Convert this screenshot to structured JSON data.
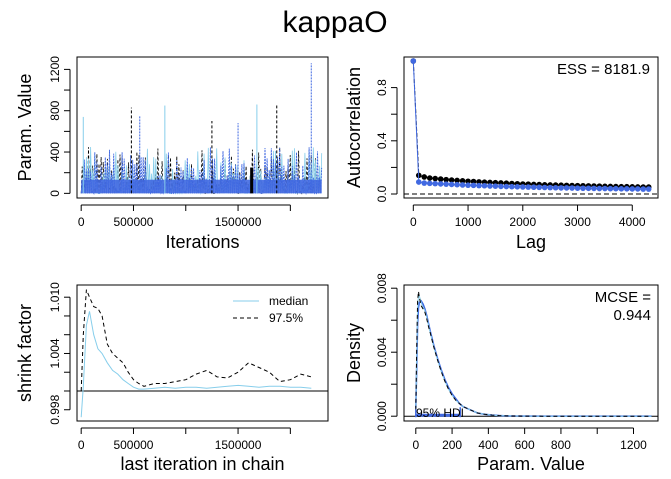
{
  "title": "kappaO",
  "colors": {
    "blue": "#4169E1",
    "lightblue": "#87CEEB",
    "black": "#000000"
  },
  "chart_data": [
    {
      "type": "line",
      "name": "trace",
      "xlabel": "Iterations",
      "ylabel": "Param. Value",
      "xlim": [
        0,
        2300000
      ],
      "ylim": [
        0,
        1300
      ],
      "xticks": [
        0,
        500000,
        1000000,
        1500000,
        2000000
      ],
      "xticklabels": [
        "0",
        "500000",
        "",
        "1500000",
        ""
      ],
      "yticks": [
        0,
        200,
        400,
        600,
        800,
        1000,
        1200
      ],
      "yticklabels": [
        "0",
        "",
        "400",
        "",
        "800",
        "",
        "1200"
      ],
      "typical_median": 60,
      "typical_max": 450,
      "spikes": [
        {
          "x": 20000,
          "y": 740
        },
        {
          "x": 480000,
          "y": 830
        },
        {
          "x": 560000,
          "y": 750
        },
        {
          "x": 800000,
          "y": 850
        },
        {
          "x": 1250000,
          "y": 700
        },
        {
          "x": 1500000,
          "y": 680
        },
        {
          "x": 1680000,
          "y": 860
        },
        {
          "x": 1870000,
          "y": 850
        },
        {
          "x": 2200000,
          "y": 1260
        }
      ]
    },
    {
      "type": "scatter",
      "name": "autocorrelation",
      "xlabel": "Lag",
      "ylabel": "Autocorrelation",
      "annotation": "ESS = 8181.9",
      "xlim": [
        0,
        4300
      ],
      "ylim": [
        0,
        1.0
      ],
      "xticks": [
        0,
        1000,
        2000,
        3000,
        4000
      ],
      "xticklabels": [
        "0",
        "1000",
        "2000",
        "3000",
        "4000"
      ],
      "yticks": [
        0.0,
        0.2,
        0.4,
        0.6,
        0.8
      ],
      "yticklabels": [
        "0.0",
        "",
        "0.4",
        "",
        "0.8"
      ],
      "lags": [
        0,
        100,
        200,
        300,
        400,
        500,
        600,
        700,
        800,
        900,
        1000,
        1100,
        1200,
        1300,
        1400,
        1500,
        1600,
        1700,
        1800,
        1900,
        2000,
        2100,
        2200,
        2300,
        2400,
        2500,
        2600,
        2700,
        2800,
        2900,
        3000,
        3100,
        3200,
        3300,
        3400,
        3500,
        3600,
        3700,
        3800,
        3900,
        4000,
        4100,
        4200,
        4300
      ],
      "series": [
        {
          "color": "black",
          "values": [
            1.0,
            0.14,
            0.128,
            0.12,
            0.116,
            0.112,
            0.108,
            0.105,
            0.102,
            0.099,
            0.096,
            0.094,
            0.091,
            0.089,
            0.087,
            0.085,
            0.083,
            0.081,
            0.079,
            0.077,
            0.075,
            0.074,
            0.072,
            0.071,
            0.069,
            0.068,
            0.067,
            0.066,
            0.065,
            0.064,
            0.063,
            0.062,
            0.061,
            0.06,
            0.059,
            0.058,
            0.057,
            0.056,
            0.055,
            0.055,
            0.054,
            0.053,
            0.052,
            0.052
          ]
        },
        {
          "color": "blue",
          "values": [
            1.0,
            0.09,
            0.082,
            0.08,
            0.078,
            0.076,
            0.074,
            0.072,
            0.07,
            0.068,
            0.066,
            0.065,
            0.063,
            0.062,
            0.06,
            0.059,
            0.057,
            0.056,
            0.055,
            0.054,
            0.053,
            0.052,
            0.051,
            0.05,
            0.049,
            0.048,
            0.047,
            0.046,
            0.046,
            0.045,
            0.044,
            0.043,
            0.043,
            0.042,
            0.041,
            0.041,
            0.04,
            0.04,
            0.039,
            0.039,
            0.038,
            0.038,
            0.037,
            0.037
          ]
        }
      ]
    },
    {
      "type": "line",
      "name": "shrink",
      "xlabel": "last iteration in chain",
      "ylabel": "shrink factor",
      "legend": [
        "median",
        "97.5%"
      ],
      "legend_position": "top-right",
      "xlim": [
        0,
        2300000
      ],
      "ylim": [
        0.997,
        1.011
      ],
      "xticks": [
        0,
        500000,
        1000000,
        1500000,
        2000000
      ],
      "xticklabels": [
        "0",
        "500000",
        "",
        "1500000",
        ""
      ],
      "yticks": [
        0.998,
        1.0,
        1.002,
        1.004,
        1.006,
        1.008,
        1.01
      ],
      "yticklabels": [
        "0.998",
        "",
        "",
        "1.004",
        "",
        "",
        "1.010"
      ],
      "reference": 1.0,
      "x": [
        0,
        20000,
        50000,
        80000,
        120000,
        160000,
        200000,
        250000,
        300000,
        350000,
        400000,
        450000,
        500000,
        550000,
        600000,
        700000,
        800000,
        900000,
        1000000,
        1100000,
        1200000,
        1300000,
        1400000,
        1500000,
        1600000,
        1700000,
        1800000,
        1900000,
        2000000,
        2100000,
        2200000
      ],
      "series": [
        {
          "name": "median",
          "color": "lightblue",
          "values": [
            0.9972,
            1.0005,
            1.007,
            1.0085,
            1.006,
            1.0045,
            1.004,
            1.003,
            1.0022,
            1.0018,
            1.0012,
            1.0008,
            1.0004,
            1.0002,
            1.0002,
            1.0003,
            1.0004,
            1.0003,
            1.0004,
            1.0004,
            1.0003,
            1.0004,
            1.0005,
            1.0006,
            1.0005,
            1.0004,
            1.0005,
            1.0005,
            1.0004,
            1.0004,
            1.0003
          ]
        },
        {
          "name": "97.5%",
          "color": "black",
          "values": [
            1.0,
            1.006,
            1.0108,
            1.01,
            1.009,
            1.0088,
            1.008,
            1.005,
            1.004,
            1.0035,
            1.003,
            1.002,
            1.0012,
            1.0008,
            1.0005,
            1.0008,
            1.0008,
            1.001,
            1.0012,
            1.0018,
            1.0022,
            1.0015,
            1.0014,
            1.002,
            1.003,
            1.0025,
            1.002,
            1.001,
            1.0012,
            1.0018,
            1.0015
          ]
        }
      ]
    },
    {
      "type": "area",
      "name": "density",
      "xlabel": "Param. Value",
      "ylabel": "Density",
      "annotation_line1": "MCSE =",
      "annotation_line2": "0.944",
      "hdi_label": "95% HDI",
      "hdi": [
        0,
        245
      ],
      "xlim": [
        -50,
        1330
      ],
      "ylim": [
        0,
        0.008
      ],
      "xticks": [
        0,
        200,
        400,
        600,
        800,
        1000,
        1200
      ],
      "xticklabels": [
        "0",
        "200",
        "400",
        "600",
        "800",
        "",
        "1200"
      ],
      "yticks": [
        0.0,
        0.002,
        0.004,
        0.006,
        0.008
      ],
      "yticklabels": [
        "0.000",
        "",
        "0.004",
        "",
        "0.008"
      ],
      "x": [
        0,
        5,
        10,
        15,
        20,
        30,
        40,
        50,
        60,
        70,
        80,
        100,
        120,
        140,
        160,
        180,
        200,
        220,
        240,
        260,
        280,
        300,
        340,
        380,
        420,
        460,
        500,
        550,
        600,
        700,
        800,
        900,
        1000,
        1100,
        1200,
        1300
      ],
      "series": [
        {
          "color": "blue",
          "values": [
            0.0005,
            0.003,
            0.0058,
            0.0068,
            0.0071,
            0.0072,
            0.007,
            0.0067,
            0.0063,
            0.0058,
            0.0053,
            0.0044,
            0.0036,
            0.0029,
            0.0023,
            0.0018,
            0.0014,
            0.0011,
            0.0008,
            0.0006,
            0.0005,
            0.0004,
            0.0002,
            0.00012,
            7e-05,
            4e-05,
            2e-05,
            1e-05,
            5e-06,
            2e-06,
            8e-07,
            3e-07,
            1e-07,
            0.0,
            0.0,
            0.0
          ]
        },
        {
          "color": "lightblue",
          "values": [
            0.0004,
            0.0034,
            0.0066,
            0.0076,
            0.0075,
            0.0071,
            0.0068,
            0.0066,
            0.0062,
            0.0057,
            0.0052,
            0.0043,
            0.0035,
            0.0028,
            0.0022,
            0.0017,
            0.0013,
            0.001,
            0.0008,
            0.0006,
            0.0005,
            0.0004,
            0.0002,
            0.00012,
            7e-05,
            4e-05,
            2e-05,
            1e-05,
            5e-06,
            2e-06,
            8e-07,
            3e-07,
            1e-07,
            0.0,
            0.0,
            0.0
          ]
        },
        {
          "color": "black",
          "values": [
            0.0004,
            0.0042,
            0.0072,
            0.0078,
            0.0074,
            0.0069,
            0.0067,
            0.0065,
            0.0061,
            0.0056,
            0.0052,
            0.0043,
            0.0035,
            0.0028,
            0.0022,
            0.0017,
            0.0013,
            0.001,
            0.0008,
            0.0006,
            0.0005,
            0.0004,
            0.0002,
            0.00012,
            7e-05,
            4e-05,
            2e-05,
            1e-05,
            5e-06,
            2e-06,
            8e-07,
            3e-07,
            1e-07,
            0.0,
            0.0,
            0.0
          ]
        }
      ]
    }
  ]
}
